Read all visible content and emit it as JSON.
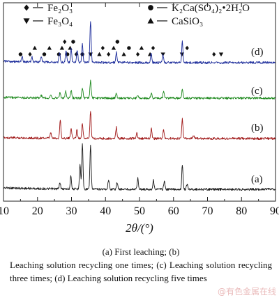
{
  "chart_data": {
    "type": "line",
    "xlabel": "2θ/(°)",
    "xlim": [
      10,
      90
    ],
    "x_ticks": [
      "10",
      "20",
      "30",
      "40",
      "50",
      "60",
      "70",
      "80",
      "90"
    ],
    "legend": {
      "placement": "top",
      "entries": [
        {
          "symbol": "diamond",
          "label": "Fe₂O₃"
        },
        {
          "symbol": "down-triangle",
          "label": "Fe₃O₄"
        },
        {
          "symbol": "circle",
          "label": "K₂Ca(SO₄)₂•2H₂O"
        },
        {
          "symbol": "up-triangle",
          "label": "CaSiO₃"
        }
      ]
    },
    "series": [
      {
        "name": "(a)",
        "color": "#1a1a1a",
        "peaks": [
          [
            26.6,
            0.15
          ],
          [
            29.8,
            0.3
          ],
          [
            32.5,
            0.55
          ],
          [
            33.2,
            1.0
          ],
          [
            35.6,
            0.95
          ],
          [
            40.9,
            0.22
          ],
          [
            43.4,
            0.15
          ],
          [
            49.5,
            0.25
          ],
          [
            54.1,
            0.2
          ],
          [
            57.3,
            0.18
          ],
          [
            62.6,
            0.55
          ],
          [
            64.0,
            0.12
          ]
        ]
      },
      {
        "name": "(b)",
        "color": "#a01818",
        "peaks": [
          [
            23.9,
            0.2
          ],
          [
            26.7,
            0.65
          ],
          [
            29.9,
            0.38
          ],
          [
            31.6,
            0.3
          ],
          [
            33.2,
            0.55
          ],
          [
            35.6,
            0.95
          ],
          [
            43.2,
            0.4
          ],
          [
            49.2,
            0.18
          ],
          [
            53.5,
            0.35
          ],
          [
            57.1,
            0.3
          ],
          [
            62.6,
            0.7
          ],
          [
            65.9,
            0.12
          ]
        ]
      },
      {
        "name": "(c)",
        "color": "#1f8a1f",
        "peaks": [
          [
            21.1,
            0.12
          ],
          [
            23.9,
            0.18
          ],
          [
            26.6,
            0.25
          ],
          [
            28.3,
            0.3
          ],
          [
            29.9,
            0.35
          ],
          [
            33.2,
            0.5
          ],
          [
            35.6,
            0.8
          ],
          [
            43.2,
            0.22
          ],
          [
            49.5,
            0.15
          ],
          [
            53.5,
            0.22
          ],
          [
            57.1,
            0.3
          ],
          [
            62.6,
            0.4
          ]
        ]
      },
      {
        "name": "(d)",
        "color": "#1a2a9a",
        "peaks": [
          [
            15.5,
            0.12
          ],
          [
            18.4,
            0.12
          ],
          [
            21.1,
            0.15
          ],
          [
            26.5,
            0.25
          ],
          [
            28.4,
            0.3
          ],
          [
            29.9,
            0.32
          ],
          [
            31.7,
            0.3
          ],
          [
            33.2,
            0.45
          ],
          [
            35.6,
            1.0
          ],
          [
            43.2,
            0.25
          ],
          [
            53.4,
            0.22
          ],
          [
            56.9,
            0.18
          ],
          [
            62.6,
            0.5
          ]
        ]
      }
    ],
    "peak_markers": [
      {
        "x": 15.0,
        "symbol": "circle"
      },
      {
        "x": 17.8,
        "symbol": "diamond"
      },
      {
        "x": 19.2,
        "symbol": "up-triangle"
      },
      {
        "x": 22.0,
        "symbol": "circle"
      },
      {
        "x": 23.5,
        "symbol": "up-triangle"
      },
      {
        "x": 26.3,
        "symbol": "circle"
      },
      {
        "x": 27.2,
        "symbol": "up-triangle"
      },
      {
        "x": 28.0,
        "symbol": "diamond"
      },
      {
        "x": 28.8,
        "symbol": "circle"
      },
      {
        "x": 29.6,
        "symbol": "up-triangle"
      },
      {
        "x": 30.5,
        "symbol": "circle"
      },
      {
        "x": 31.4,
        "symbol": "diamond"
      },
      {
        "x": 33.2,
        "symbol": "circle"
      },
      {
        "x": 35.6,
        "symbol": "down-triangle"
      },
      {
        "x": 38.2,
        "symbol": "up-triangle"
      },
      {
        "x": 39.2,
        "symbol": "diamond"
      },
      {
        "x": 40.9,
        "symbol": "diamond"
      },
      {
        "x": 42.4,
        "symbol": "up-triangle"
      },
      {
        "x": 43.5,
        "symbol": "circle"
      },
      {
        "x": 45.4,
        "symbol": "up-triangle"
      },
      {
        "x": 46.9,
        "symbol": "circle"
      },
      {
        "x": 49.5,
        "symbol": "diamond"
      },
      {
        "x": 50.6,
        "symbol": "up-triangle"
      },
      {
        "x": 53.1,
        "symbol": "up-triangle"
      },
      {
        "x": 54.0,
        "symbol": "diamond"
      },
      {
        "x": 56.9,
        "symbol": "down-triangle"
      },
      {
        "x": 62.5,
        "symbol": "down-triangle"
      },
      {
        "x": 64.0,
        "symbol": "diamond"
      },
      {
        "x": 71.9,
        "symbol": "diamond"
      },
      {
        "x": 74.0,
        "symbol": "down-triangle"
      }
    ]
  },
  "caption": {
    "line1": "(a) First leaching; (b)",
    "line2": "Leaching solution recycling one times; (c) Leaching solution recycling three times; (d) Leaching solution recycling five times"
  },
  "watermark": "@有色金属在线"
}
